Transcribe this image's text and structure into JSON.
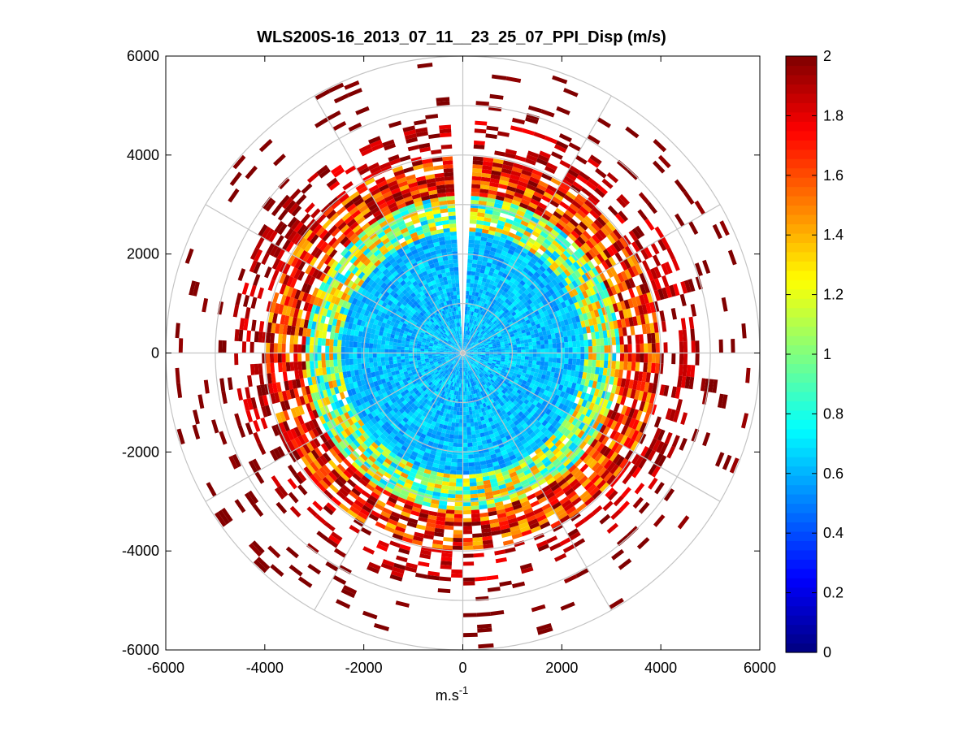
{
  "chart_data": {
    "type": "heatmap",
    "subtype": "polar-ppi",
    "title": "WLS200S-16_2013_07_11__23_25_07_PPI_Disp (m/s)",
    "xlabel": "m.s",
    "xlabel_superscript": "-1",
    "ylabel": "",
    "xlim": [
      -6000,
      6000
    ],
    "ylim": [
      -6000,
      6000
    ],
    "xticks": [
      -6000,
      -4000,
      -2000,
      0,
      2000,
      4000,
      6000
    ],
    "yticks": [
      6000,
      4000,
      2000,
      0,
      -2000,
      -4000,
      -6000
    ],
    "xtick_labels": [
      "-6000",
      "-4000",
      "-2000",
      "0",
      "2000",
      "4000",
      "6000"
    ],
    "ytick_labels": [
      "6000",
      "4000",
      "2000",
      "0",
      "-2000",
      "-4000",
      "-6000"
    ],
    "range_rings_m": [
      1000,
      2000,
      3000,
      4000,
      5000,
      6000
    ],
    "spokes_deg": [
      0,
      30,
      60,
      90,
      120,
      150,
      180,
      210,
      240,
      270,
      300,
      330
    ],
    "data_gap_azimuth_deg": [
      -2,
      2
    ],
    "colorbar": {
      "colormap": "jet",
      "min": 0,
      "max": 2,
      "ticks": [
        0,
        0.2,
        0.4,
        0.6,
        0.8,
        1,
        1.2,
        1.4,
        1.6,
        1.8,
        2
      ],
      "tick_labels": [
        "0",
        "0.2",
        "0.4",
        "0.6",
        "0.8",
        "1",
        "1.2",
        "1.4",
        "1.6",
        "1.8",
        "2"
      ]
    },
    "radial_profile": [
      {
        "range_m": [
          0,
          2500
        ],
        "value_mean": 0.62,
        "value_spread": 0.12,
        "coverage": 1.0
      },
      {
        "range_m": [
          2500,
          3200
        ],
        "value_mean": 1.05,
        "value_spread": 0.45,
        "coverage": 0.95
      },
      {
        "range_m": [
          3200,
          4000
        ],
        "value_mean": 1.7,
        "value_spread": 0.35,
        "coverage": 0.85
      },
      {
        "range_m": [
          4000,
          4700
        ],
        "value_mean": 1.9,
        "value_spread": 0.15,
        "coverage": 0.35
      },
      {
        "range_m": [
          4700,
          6000
        ],
        "value_mean": 2.0,
        "value_spread": 0.05,
        "coverage": 0.08
      }
    ]
  }
}
